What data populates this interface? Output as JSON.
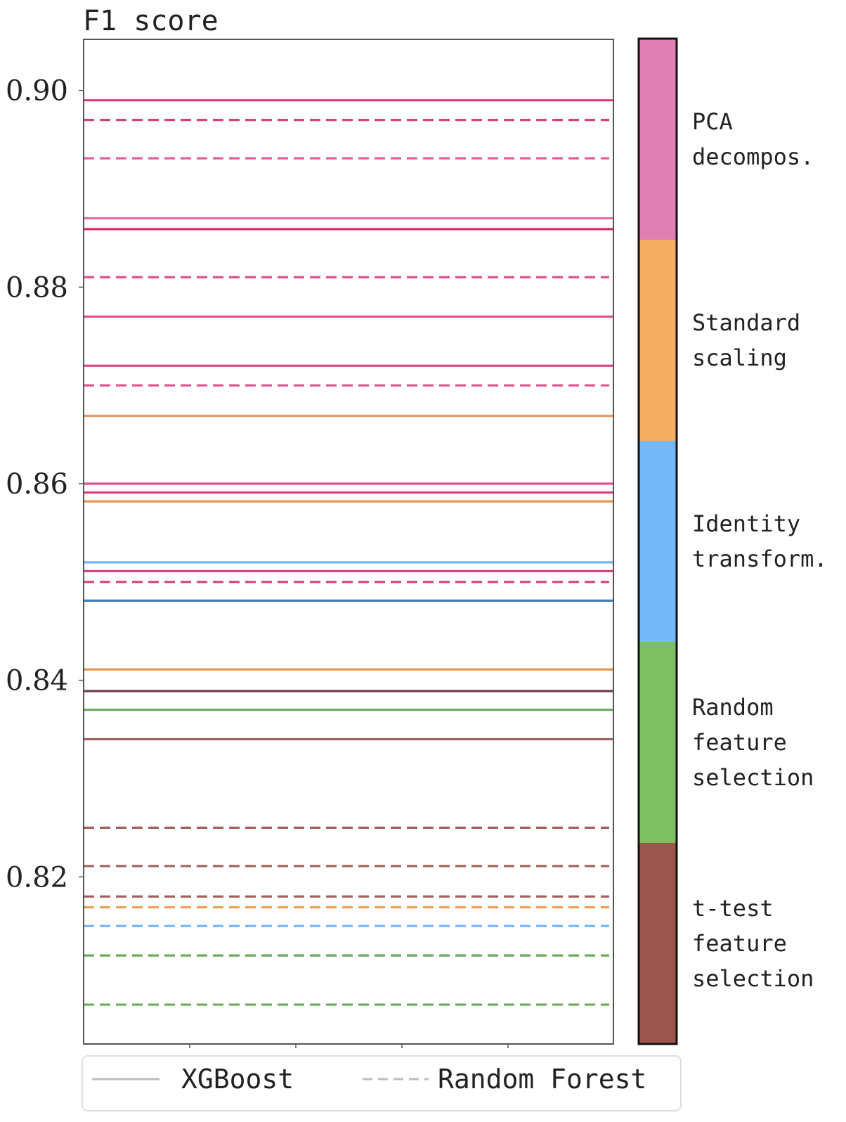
{
  "chart_data": {
    "type": "line",
    "ylabel": "F1 score",
    "ylim": [
      0.803,
      0.9052
    ],
    "yticks": [
      {
        "value": 0.82,
        "label": "0.82"
      },
      {
        "value": 0.84,
        "label": "0.84"
      },
      {
        "value": 0.86,
        "label": "0.86"
      },
      {
        "value": 0.88,
        "label": "0.88"
      },
      {
        "value": 0.9,
        "label": "0.90"
      }
    ],
    "categories": [
      {
        "key": "pca",
        "label": [
          "PCA",
          "decompos."
        ],
        "color": "#e07fb4"
      },
      {
        "key": "std",
        "label": [
          "Standard",
          "scaling"
        ],
        "color": "#f5ae62"
      },
      {
        "key": "ident",
        "label": [
          "Identity",
          "transform."
        ],
        "color": "#76b9f8"
      },
      {
        "key": "rand",
        "label": [
          "Random",
          "feature",
          "selection"
        ],
        "color": "#7dc064"
      },
      {
        "key": "ttest",
        "label": [
          "t-test",
          "feature",
          "selection"
        ],
        "color": "#9a554c"
      }
    ],
    "lines": [
      {
        "value": 0.899,
        "model": "XGBoost",
        "color": "#dd3c7a"
      },
      {
        "value": 0.897,
        "model": "Random Forest",
        "color": "#d4436e"
      },
      {
        "value": 0.8931,
        "model": "Random Forest",
        "color": "#e4599a"
      },
      {
        "value": 0.887,
        "model": "XGBoost",
        "color": "#e66ca2"
      },
      {
        "value": 0.8859,
        "model": "XGBoost",
        "color": "#d62a66"
      },
      {
        "value": 0.881,
        "model": "Random Forest",
        "color": "#e0508e"
      },
      {
        "value": 0.877,
        "model": "XGBoost",
        "color": "#e0508e"
      },
      {
        "value": 0.872,
        "model": "XGBoost",
        "color": "#dd4a8a"
      },
      {
        "value": 0.87,
        "model": "Random Forest",
        "color": "#e0508e"
      },
      {
        "value": 0.8669,
        "model": "XGBoost",
        "color": "#ef9a5c"
      },
      {
        "value": 0.86,
        "model": "XGBoost",
        "color": "#e0508e"
      },
      {
        "value": 0.8591,
        "model": "XGBoost",
        "color": "#d8417c"
      },
      {
        "value": 0.8582,
        "model": "XGBoost",
        "color": "#ea9150"
      },
      {
        "value": 0.852,
        "model": "XGBoost",
        "color": "#76b4f4"
      },
      {
        "value": 0.8511,
        "model": "XGBoost",
        "color": "#d8417c"
      },
      {
        "value": 0.85,
        "model": "Random Forest",
        "color": "#d8417c"
      },
      {
        "value": 0.8481,
        "model": "XGBoost",
        "color": "#3f7ec0"
      },
      {
        "value": 0.8411,
        "model": "XGBoost",
        "color": "#ea9150"
      },
      {
        "value": 0.8389,
        "model": "XGBoost",
        "color": "#6f3d4a"
      },
      {
        "value": 0.837,
        "model": "XGBoost",
        "color": "#6aab5c"
      },
      {
        "value": 0.834,
        "model": "XGBoost",
        "color": "#a2625e"
      },
      {
        "value": 0.825,
        "model": "Random Forest",
        "color": "#a2625e"
      },
      {
        "value": 0.8211,
        "model": "Random Forest",
        "color": "#a2625e"
      },
      {
        "value": 0.818,
        "model": "Random Forest",
        "color": "#a2625e"
      },
      {
        "value": 0.8169,
        "model": "Random Forest",
        "color": "#f0a258"
      },
      {
        "value": 0.815,
        "model": "Random Forest",
        "color": "#76b4f4"
      },
      {
        "value": 0.812,
        "model": "Random Forest",
        "color": "#6aab5c"
      },
      {
        "value": 0.807,
        "model": "Random Forest",
        "color": "#6aab5c"
      }
    ],
    "legend": {
      "position": "bottom",
      "items": [
        {
          "label": "XGBoost",
          "style": "solid"
        },
        {
          "label": "Random Forest",
          "style": "dashed"
        }
      ]
    }
  }
}
